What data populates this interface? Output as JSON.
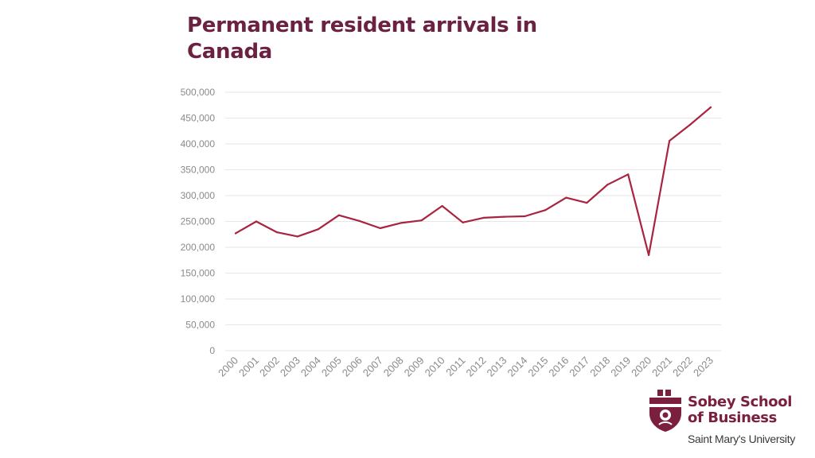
{
  "chart_data": {
    "type": "line",
    "title": "Permanent resident arrivals in Canada",
    "xlabel": "",
    "ylabel": "",
    "ylim": [
      0,
      500000
    ],
    "yticks": [
      "0",
      "50,000",
      "100,000",
      "150,000",
      "200,000",
      "250,000",
      "300,000",
      "350,000",
      "400,000",
      "450,000",
      "500,000"
    ],
    "grid": true,
    "categories": [
      "2000",
      "2001",
      "2002",
      "2003",
      "2004",
      "2005",
      "2006",
      "2007",
      "2008",
      "2009",
      "2010",
      "2011",
      "2012",
      "2013",
      "2014",
      "2015",
      "2016",
      "2017",
      "2018",
      "2019",
      "2020",
      "2021",
      "2022",
      "2023"
    ],
    "series": [
      {
        "name": "Permanent resident arrivals",
        "color": "#a8243f",
        "values": [
          227000,
          250000,
          229000,
          221000,
          235000,
          262000,
          251000,
          237000,
          247000,
          252000,
          280000,
          248000,
          257000,
          259000,
          260000,
          272000,
          296000,
          286000,
          321000,
          341000,
          185000,
          406000,
          437000,
          471000
        ]
      }
    ]
  },
  "logo": {
    "name_line1": "Sobey School",
    "name_line2": "of Business",
    "university": "Saint Mary's University",
    "color": "#7a1f3d"
  }
}
